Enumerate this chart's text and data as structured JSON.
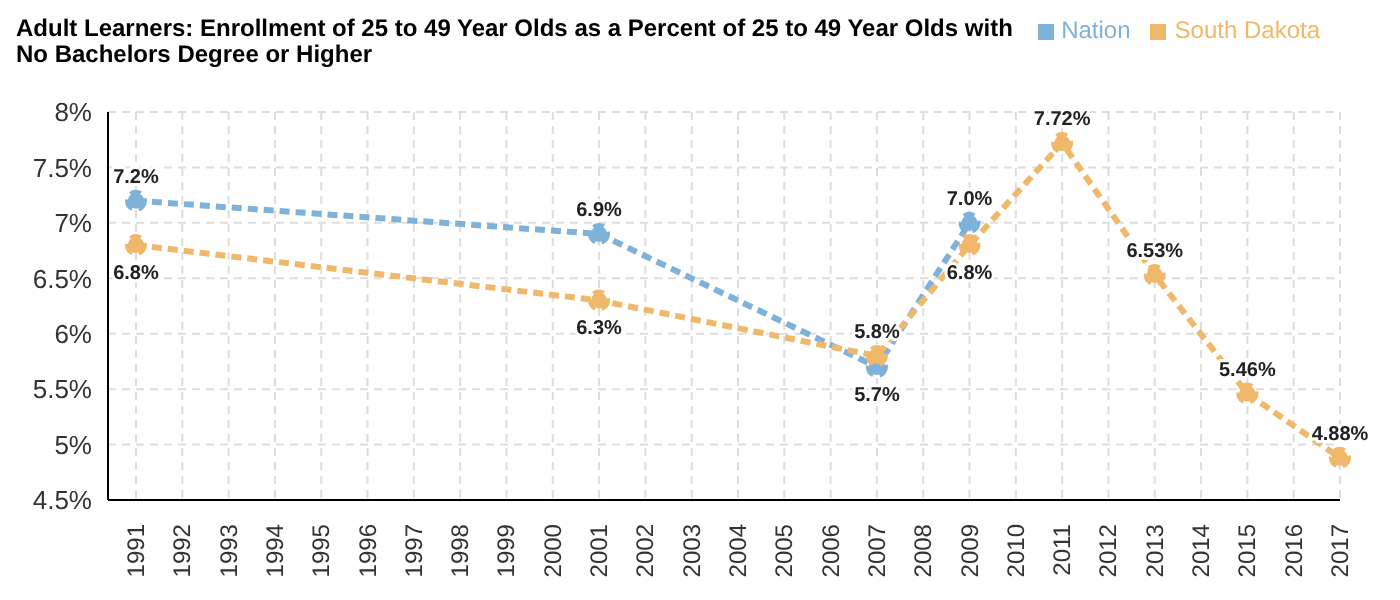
{
  "chart_data": {
    "type": "line",
    "title": "Adult Learners: Enrollment of 25 to 49 Year Olds as a Percent of 25 to 49 Year Olds with No Bachelors Degree or Higher",
    "categories": [
      "1991",
      "1992",
      "1993",
      "1994",
      "1995",
      "1996",
      "1997",
      "1998",
      "1999",
      "2000",
      "2001",
      "2002",
      "2003",
      "2004",
      "2005",
      "2006",
      "2007",
      "2008",
      "2009",
      "2010",
      "2011",
      "2012",
      "2013",
      "2014",
      "2015",
      "2016",
      "2017"
    ],
    "series": [
      {
        "name": "Nation",
        "color": "#7fb2d9",
        "values": [
          7.2,
          null,
          null,
          null,
          null,
          null,
          null,
          null,
          null,
          null,
          6.9,
          null,
          null,
          null,
          null,
          null,
          5.7,
          null,
          7.0,
          null,
          null,
          null,
          null,
          null,
          null,
          null,
          null
        ],
        "value_labels": [
          "7.2%",
          null,
          null,
          null,
          null,
          null,
          null,
          null,
          null,
          null,
          "6.9%",
          null,
          null,
          null,
          null,
          null,
          "5.7%",
          null,
          "7.0%",
          null,
          null,
          null,
          null,
          null,
          null,
          null,
          null
        ]
      },
      {
        "name": "South Dakota",
        "color": "#f0b86a",
        "values": [
          6.8,
          null,
          null,
          null,
          null,
          null,
          null,
          null,
          null,
          null,
          6.3,
          null,
          null,
          null,
          null,
          null,
          5.8,
          null,
          6.8,
          null,
          7.72,
          null,
          6.53,
          null,
          5.46,
          null,
          4.88
        ],
        "value_labels": [
          "6.8%",
          null,
          null,
          null,
          null,
          null,
          null,
          null,
          null,
          null,
          "6.3%",
          null,
          null,
          null,
          null,
          null,
          "5.8%",
          null,
          "6.8%",
          null,
          "7.72%",
          null,
          "6.53%",
          null,
          "5.46%",
          null,
          "4.88%"
        ]
      }
    ],
    "ylim": [
      4.5,
      8
    ],
    "yticks": [
      {
        "value": 4.5,
        "label": "4.5%"
      },
      {
        "value": 5,
        "label": "5%"
      },
      {
        "value": 5.5,
        "label": "5.5%"
      },
      {
        "value": 6,
        "label": "6%"
      },
      {
        "value": 6.5,
        "label": "6.5%"
      },
      {
        "value": 7,
        "label": "7%"
      },
      {
        "value": 7.5,
        "label": "7.5%"
      },
      {
        "value": 8,
        "label": "8%"
      }
    ],
    "grid": true,
    "legend": "top right",
    "marker": "circle",
    "line_style": "dashed"
  }
}
